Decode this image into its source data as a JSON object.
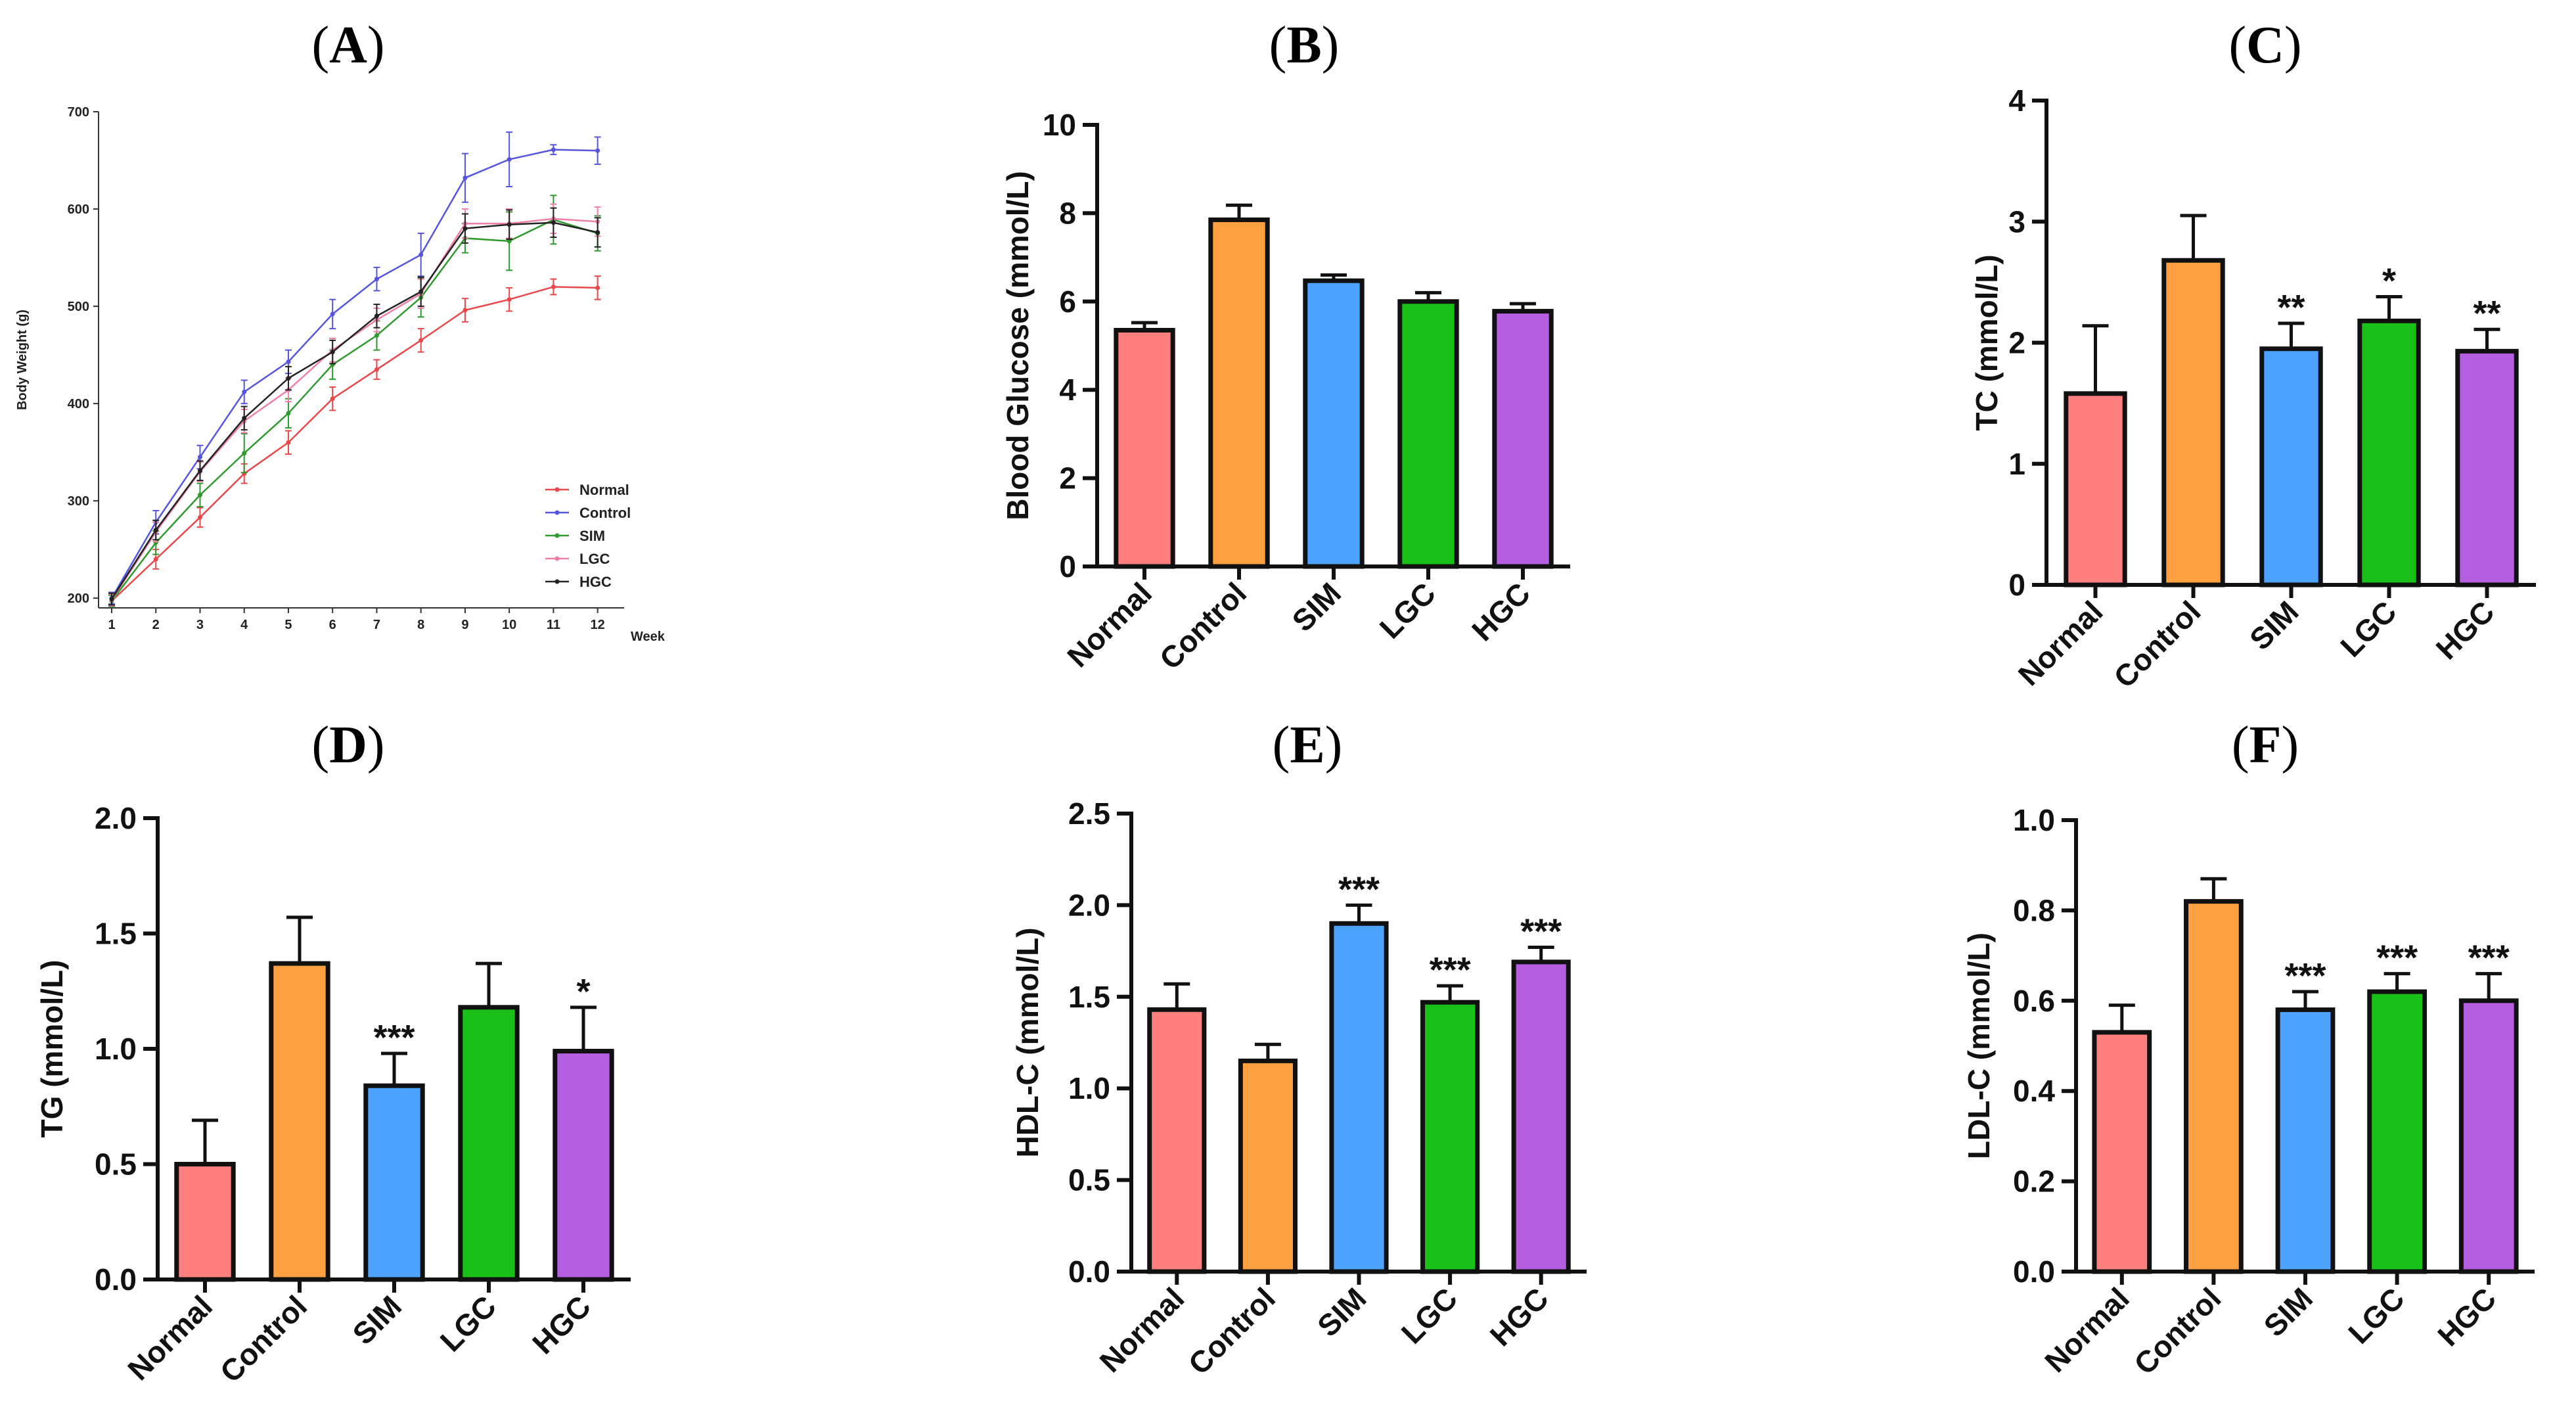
{
  "colors": {
    "Normal": "#ff7f7f",
    "Control": "#ffa040",
    "SIM": "#4da3ff",
    "LGC": "#18c018",
    "HGC": "#b55ee0",
    "line_Normal": "#e8484a",
    "line_Control": "#5555dd",
    "line_SIM": "#2e9a2e",
    "line_LGC": "#ef7fa8",
    "line_HGC": "#222222"
  },
  "chart_data": [
    {
      "id": "A",
      "panel_label": "A",
      "type": "line",
      "title": "",
      "xlabel": "Week",
      "ylabel": "Body Weight (g)",
      "x": [
        1,
        2,
        3,
        4,
        5,
        6,
        7,
        8,
        9,
        10,
        11,
        12
      ],
      "x_ticks": [
        "1",
        "2",
        "3",
        "4",
        "5",
        "6",
        "7",
        "8",
        "9",
        "10",
        "11",
        "12"
      ],
      "ylim": [
        190,
        700
      ],
      "y_ticks": [
        "200",
        "300",
        "400",
        "500",
        "600",
        "700"
      ],
      "legend": "right",
      "series": [
        {
          "name": "Normal",
          "color_key": "line_Normal",
          "values": [
            197,
            240,
            283,
            328,
            360,
            405,
            435,
            465,
            496,
            507,
            520,
            519
          ],
          "errors": [
            6,
            10,
            10,
            10,
            12,
            12,
            10,
            12,
            12,
            12,
            8,
            12
          ]
        },
        {
          "name": "Control",
          "color_key": "line_Control",
          "values": [
            200,
            278,
            345,
            412,
            443,
            492,
            528,
            553,
            632,
            651,
            661,
            660
          ],
          "errors": [
            6,
            12,
            12,
            12,
            12,
            15,
            12,
            22,
            25,
            28,
            5,
            14
          ]
        },
        {
          "name": "SIM",
          "color_key": "line_SIM",
          "values": [
            197,
            257,
            306,
            349,
            390,
            440,
            470,
            509,
            570,
            567,
            589,
            575
          ],
          "errors": [
            6,
            12,
            12,
            20,
            15,
            15,
            15,
            20,
            15,
            30,
            25,
            18
          ]
        },
        {
          "name": "LGC",
          "color_key": "line_LGC",
          "values": [
            198,
            268,
            330,
            382,
            414,
            455,
            486,
            513,
            585,
            585,
            590,
            587
          ],
          "errors": [
            6,
            10,
            10,
            12,
            12,
            12,
            12,
            15,
            15,
            15,
            15,
            15
          ]
        },
        {
          "name": "HGC",
          "color_key": "line_HGC",
          "values": [
            199,
            270,
            331,
            385,
            426,
            453,
            490,
            515,
            580,
            584,
            586,
            576
          ],
          "errors": [
            6,
            10,
            10,
            12,
            12,
            12,
            12,
            15,
            15,
            15,
            15,
            15
          ]
        }
      ]
    },
    {
      "id": "B",
      "panel_label": "B",
      "type": "bar",
      "title": "",
      "xlabel": "",
      "ylabel": "Blood Glucose (mmol/L)",
      "categories": [
        "Normal",
        "Control",
        "SIM",
        "LGC",
        "HGC"
      ],
      "values": [
        5.35,
        7.85,
        6.47,
        6.0,
        5.78
      ],
      "errors": [
        0.17,
        0.33,
        0.13,
        0.2,
        0.17
      ],
      "significance": [
        "",
        "",
        "",
        "",
        ""
      ],
      "ylim": [
        0,
        10
      ],
      "y_ticks": [
        0,
        2,
        4,
        6,
        8,
        10
      ],
      "y_tick_labels": [
        "0",
        "2",
        "4",
        "6",
        "8",
        "10"
      ]
    },
    {
      "id": "C",
      "panel_label": "C",
      "type": "bar",
      "title": "",
      "xlabel": "",
      "ylabel": "TC (mmol/L)",
      "categories": [
        "Normal",
        "Control",
        "SIM",
        "LGC",
        "HGC"
      ],
      "values": [
        1.58,
        2.68,
        1.95,
        2.18,
        1.93
      ],
      "errors": [
        0.56,
        0.37,
        0.21,
        0.2,
        0.18
      ],
      "significance": [
        "",
        "",
        "**",
        "*",
        "**"
      ],
      "ylim": [
        0,
        4
      ],
      "y_ticks": [
        0,
        1,
        2,
        3,
        4
      ],
      "y_tick_labels": [
        "0",
        "1",
        "2",
        "3",
        "4"
      ]
    },
    {
      "id": "D",
      "panel_label": "D",
      "type": "bar",
      "title": "",
      "xlabel": "",
      "ylabel": "TG (mmol/L)",
      "categories": [
        "Normal",
        "Control",
        "SIM",
        "LGC",
        "HGC"
      ],
      "values": [
        0.5,
        1.37,
        0.84,
        1.18,
        0.99
      ],
      "errors": [
        0.19,
        0.2,
        0.14,
        0.19,
        0.19
      ],
      "significance": [
        "",
        "",
        "***",
        "",
        "*"
      ],
      "ylim": [
        0,
        2
      ],
      "y_ticks": [
        0,
        0.5,
        1.0,
        1.5,
        2.0
      ],
      "y_tick_labels": [
        "0.0",
        "0.5",
        "1.0",
        "1.5",
        "2.0"
      ]
    },
    {
      "id": "E",
      "panel_label": "E",
      "type": "bar",
      "title": "",
      "xlabel": "",
      "ylabel": "HDL-C (mmol/L)",
      "categories": [
        "Normal",
        "Control",
        "SIM",
        "LGC",
        "HGC"
      ],
      "values": [
        1.43,
        1.15,
        1.9,
        1.47,
        1.69
      ],
      "errors": [
        0.14,
        0.09,
        0.1,
        0.09,
        0.08
      ],
      "significance": [
        "",
        "",
        "***",
        "***",
        "***"
      ],
      "ylim": [
        0,
        2.5
      ],
      "y_ticks": [
        0,
        0.5,
        1.0,
        1.5,
        2.0,
        2.5
      ],
      "y_tick_labels": [
        "0.0",
        "0.5",
        "1.0",
        "1.5",
        "2.0",
        "2.5"
      ]
    },
    {
      "id": "F",
      "panel_label": "F",
      "type": "bar",
      "title": "",
      "xlabel": "",
      "ylabel": "LDL-C (mmol/L)",
      "categories": [
        "Normal",
        "Control",
        "SIM",
        "LGC",
        "HGC"
      ],
      "values": [
        0.53,
        0.82,
        0.58,
        0.62,
        0.6
      ],
      "errors": [
        0.06,
        0.05,
        0.04,
        0.04,
        0.06
      ],
      "significance": [
        "",
        "",
        "***",
        "***",
        "***"
      ],
      "ylim": [
        0,
        1.0
      ],
      "y_ticks": [
        0,
        0.2,
        0.4,
        0.6,
        0.8,
        1.0
      ],
      "y_tick_labels": [
        "0.0",
        "0.2",
        "0.4",
        "0.6",
        "0.8",
        "1.0"
      ]
    }
  ]
}
